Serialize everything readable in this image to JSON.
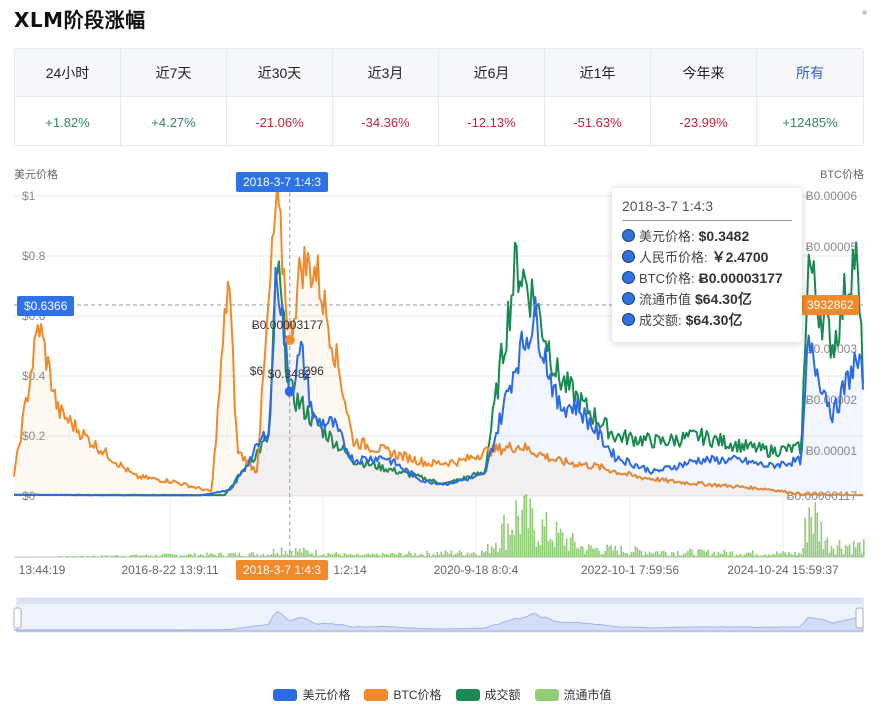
{
  "page": {
    "title": "XLM阶段涨幅"
  },
  "periods": [
    {
      "label": "24小时",
      "value": "+1.82%",
      "dir": "pos"
    },
    {
      "label": "近7天",
      "value": "+4.27%",
      "dir": "pos"
    },
    {
      "label": "近30天",
      "value": "-21.06%",
      "dir": "neg"
    },
    {
      "label": "近3月",
      "value": "-34.36%",
      "dir": "neg"
    },
    {
      "label": "近6月",
      "value": "-12.13%",
      "dir": "neg"
    },
    {
      "label": "近1年",
      "value": "-51.63%",
      "dir": "neg"
    },
    {
      "label": "今年来",
      "value": "-23.99%",
      "dir": "neg"
    },
    {
      "label": "所有",
      "value": "+12485%",
      "dir": "pos"
    }
  ],
  "tooltip": {
    "title": "2018-3-7 1:4:3",
    "rows": [
      {
        "label": "美元价格:",
        "value": "$0.3482"
      },
      {
        "label": "人民币价格:",
        "value": "￥2.4700"
      },
      {
        "label": "BTC价格:",
        "value": "Ƀ0.00003177"
      },
      {
        "label": "流通市值",
        "value": "$64.30亿"
      },
      {
        "label": "成交额:",
        "value": "$64.30亿"
      }
    ]
  },
  "crosshair": {
    "x_label": "2018-3-7 1:4:3",
    "y_label": "$0.6366",
    "right_label": "3932862",
    "point_label_btc": "Ƀ0.00003177",
    "point_label_usd": "$0.3482",
    "point_label_partial": "$6",
    "point_label_trailing": "296"
  },
  "colors": {
    "usd": "#2c6be0",
    "btc": "#f08a2a",
    "volume": "#1a8a52",
    "market_cap": "#8fce74",
    "positive": "#2f8a5f",
    "negative": "#c8213b"
  },
  "chart_data": {
    "type": "line",
    "left_axis_title": "美元价格",
    "right_axis_title": "BTC价格",
    "y_left": {
      "ticks": [
        "$0",
        "$0.2",
        "$0.4",
        "$0.6",
        "$0.8",
        "$1"
      ],
      "ylim": [
        0,
        1
      ]
    },
    "y_right": {
      "ticks": [
        "Ƀ0.00000117",
        "Ƀ0.00001",
        "Ƀ0.00002",
        "Ƀ0.00003",
        "Ƀ0.00005",
        "Ƀ0.00006"
      ]
    },
    "x_ticks": [
      "13:44:19",
      "2016-8-22 13:9:11",
      "1:2:14",
      "2020-9-18 8:0:4",
      "2022-10-1 7:59:56",
      "2024-10-24 15:59:37"
    ],
    "x_range": [
      "2014-08-05",
      "2025-08-20"
    ],
    "legend": [
      "美元价格",
      "BTC价格",
      "成交额",
      "流通市值"
    ],
    "series": [
      {
        "name": "美元价格",
        "x": [
          "2014-08-05",
          "2015-06-01",
          "2016-06-01",
          "2017-01-01",
          "2017-06-01",
          "2017-12-01",
          "2018-01-04",
          "2018-03-07",
          "2018-05-01",
          "2018-07-01",
          "2018-10-01",
          "2019-01-01",
          "2019-06-01",
          "2019-12-01",
          "2020-03-15",
          "2020-09-18",
          "2021-02-15",
          "2021-05-15",
          "2021-09-01",
          "2021-12-01",
          "2022-06-01",
          "2022-12-01",
          "2023-07-01",
          "2024-01-01",
          "2024-06-01",
          "2024-11-01",
          "2024-12-01",
          "2025-01-15",
          "2025-04-01",
          "2025-07-15",
          "2025-08-20"
        ],
        "values": [
          0.004,
          0.003,
          0.002,
          0.002,
          0.02,
          0.23,
          0.78,
          0.348,
          0.48,
          0.25,
          0.24,
          0.12,
          0.13,
          0.05,
          0.04,
          0.07,
          0.45,
          0.6,
          0.3,
          0.3,
          0.13,
          0.08,
          0.12,
          0.12,
          0.1,
          0.12,
          0.5,
          0.42,
          0.27,
          0.45,
          0.4
        ]
      },
      {
        "name": "BTC价格",
        "x": [
          "2014-08-05",
          "2014-12-01",
          "2015-03-01",
          "2015-08-01",
          "2016-03-01",
          "2016-09-01",
          "2017-03-01",
          "2017-05-20",
          "2017-07-01",
          "2017-10-01",
          "2018-01-04",
          "2018-03-07",
          "2018-05-01",
          "2018-07-15",
          "2018-11-01",
          "2019-01-01",
          "2019-06-01",
          "2020-01-01",
          "2020-06-01",
          "2020-10-01",
          "2021-03-01",
          "2021-09-01",
          "2022-03-01",
          "2022-09-01",
          "2023-03-01",
          "2024-01-01",
          "2024-06-01",
          "2024-11-01",
          "2025-08-20"
        ],
        "values": [
          5e-06,
          3.5e-05,
          1.8e-05,
          1.2e-05,
          5e-06,
          4e-06,
          2e-06,
          4.5e-05,
          1e-05,
          6e-06,
          6e-05,
          3.177e-05,
          4.7e-05,
          4.5e-05,
          2.5e-05,
          1.2e-05,
          1e-05,
          7.5e-06,
          8e-06,
          1e-05,
          1.1e-05,
          8e-06,
          7e-06,
          5e-06,
          4e-06,
          3e-06,
          2.5e-06,
          1.5e-06,
          1.3e-06
        ]
      },
      {
        "name": "成交额",
        "x": [
          "2014-08-05",
          "2017-05-01",
          "2017-12-01",
          "2018-01-04",
          "2018-03-07",
          "2018-07-01",
          "2019-01-01",
          "2020-03-15",
          "2020-09-18",
          "2021-02-15",
          "2021-05-15",
          "2021-09-01",
          "2022-01-01",
          "2022-06-01",
          "2023-01-01",
          "2023-07-01",
          "2024-01-01",
          "2024-06-01",
          "2024-11-01",
          "2024-12-01",
          "2025-01-15",
          "2025-04-01",
          "2025-07-15",
          "2025-08-20"
        ],
        "values": [
          0.004,
          0.003,
          0.2,
          0.78,
          0.348,
          0.25,
          0.12,
          0.04,
          0.08,
          0.78,
          0.65,
          0.4,
          0.3,
          0.2,
          0.18,
          0.2,
          0.17,
          0.15,
          0.16,
          0.8,
          0.65,
          0.5,
          0.82,
          0.42
        ]
      },
      {
        "name": "流通市值",
        "x": [
          "2014-08-05",
          "2017-12-01",
          "2018-01-04",
          "2018-06-01",
          "2019-01-01",
          "2020-09-18",
          "2021-02-15",
          "2021-05-15",
          "2022-01-01",
          "2023-01-01",
          "2024-11-01",
          "2024-12-01",
          "2025-03-01",
          "2025-08-20"
        ],
        "values": [
          0.0,
          0.02,
          0.05,
          0.03,
          0.01,
          0.03,
          0.25,
          0.18,
          0.05,
          0.03,
          0.02,
          0.3,
          0.08,
          0.06
        ]
      }
    ],
    "grid": true,
    "legend_placement": "bottom"
  }
}
